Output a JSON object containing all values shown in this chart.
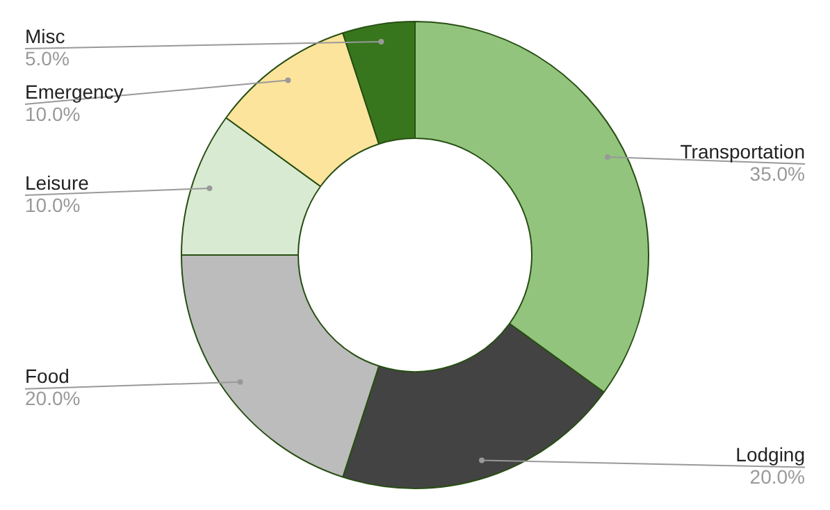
{
  "chart_data": {
    "type": "donut",
    "categories": [
      "Transportation",
      "Lodging",
      "Food",
      "Leisure",
      "Emergency",
      "Misc"
    ],
    "values": [
      35,
      20,
      20,
      10,
      10,
      5
    ],
    "value_labels": [
      "35.0%",
      "20.0%",
      "20.0%",
      "10.0%",
      "10.0%",
      "5.0%"
    ],
    "colors": [
      "#93c47d",
      "#434343",
      "#bcbcbc",
      "#d9ead3",
      "#fce49c",
      "#38761d"
    ],
    "legend": false
  }
}
